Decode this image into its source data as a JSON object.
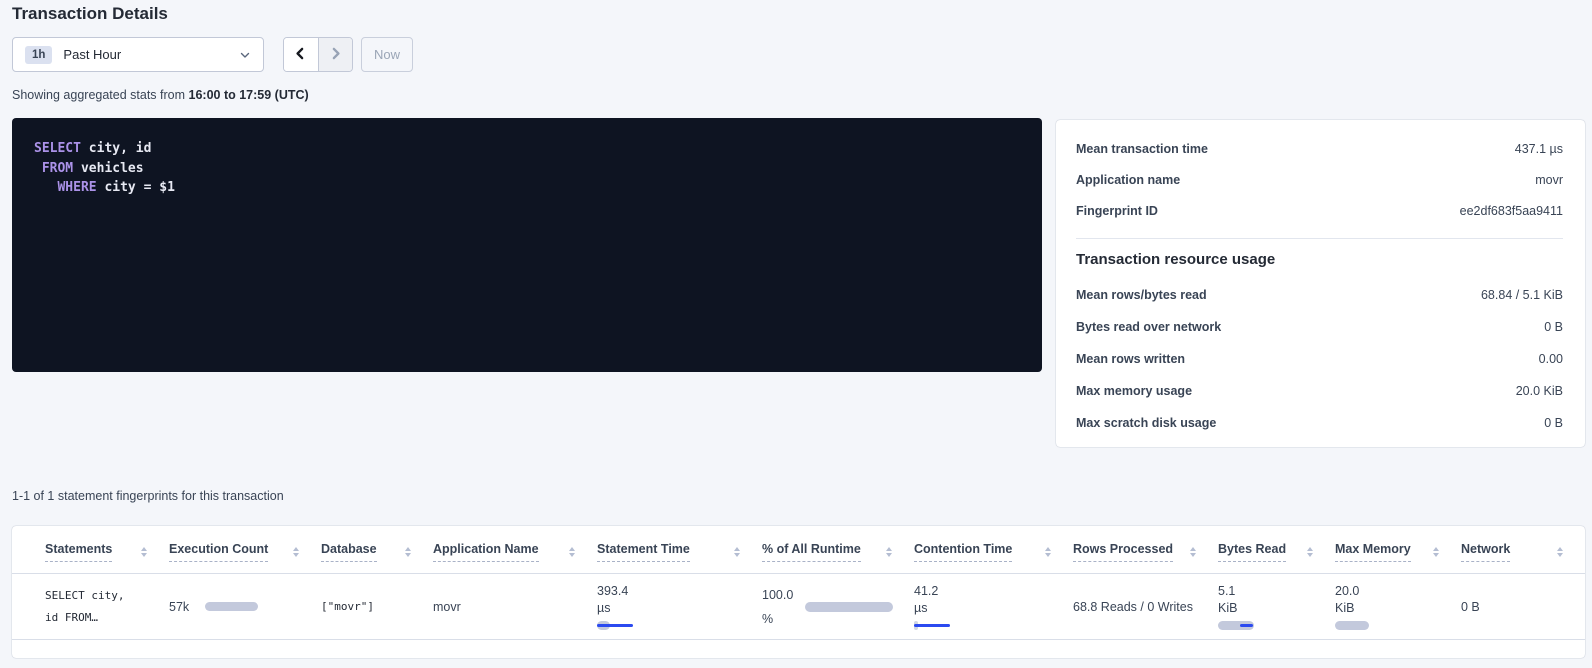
{
  "page": {
    "title": "Transaction Details"
  },
  "time_picker": {
    "range_badge": "1h",
    "range_label": "Past Hour",
    "now_label": "Now"
  },
  "stats_line": {
    "prefix": "Showing aggregated stats from ",
    "range": "16:00 to 17:59 (UTC)"
  },
  "sql": {
    "statement": "SELECT city, id FROM vehicles WHERE city = $1",
    "lines": [
      {
        "tokens": [
          {
            "type": "keyword",
            "text": "SELECT"
          },
          {
            "type": "text",
            "text": " city, id"
          }
        ]
      },
      {
        "tokens": [
          {
            "type": "text",
            "text": " "
          },
          {
            "type": "keyword",
            "text": "FROM"
          },
          {
            "type": "text",
            "text": " vehicles"
          }
        ]
      },
      {
        "tokens": [
          {
            "type": "text",
            "text": "   "
          },
          {
            "type": "keyword",
            "text": "WHERE"
          },
          {
            "type": "text",
            "text": " city = $1"
          }
        ]
      }
    ]
  },
  "summary": {
    "rows": [
      {
        "label": "Mean transaction time",
        "value": "437.1 µs"
      },
      {
        "label": "Application name",
        "value": "movr"
      },
      {
        "label": "Fingerprint ID",
        "value": "ee2df683f5aa9411"
      }
    ]
  },
  "resource": {
    "heading": "Transaction resource usage",
    "rows": [
      {
        "label": "Mean rows/bytes read",
        "value": "68.84 / 5.1 KiB"
      },
      {
        "label": "Bytes read over network",
        "value": "0 B"
      },
      {
        "label": "Mean rows written",
        "value": "0.00"
      },
      {
        "label": "Max memory usage",
        "value": "20.0 KiB"
      },
      {
        "label": "Max scratch disk usage",
        "value": "0 B"
      }
    ]
  },
  "statements_table": {
    "caption": "1-1 of 1 statement fingerprints for this transaction",
    "columns": [
      "Statements",
      "Execution Count",
      "Database",
      "Application Name",
      "Statement Time",
      "% of All Runtime",
      "Contention Time",
      "Rows Processed",
      "Bytes Read",
      "Max Memory",
      "Network"
    ],
    "row": {
      "statement_line1": "SELECT city,",
      "statement_line2": "id FROM…",
      "execution_count": "57k",
      "database": "[\"movr\"]",
      "application_name": "movr",
      "statement_time": {
        "value": "393.4",
        "unit": "µs"
      },
      "percent_of_runtime": {
        "value": "100.0",
        "unit": "%"
      },
      "contention_time": {
        "value": "41.2",
        "unit": "µs"
      },
      "rows_processed": "68.8 Reads / 0 Writes",
      "bytes_read": {
        "value": "5.1",
        "unit": "KiB"
      },
      "max_memory": {
        "value": "20.0",
        "unit": "KiB"
      },
      "network": "0 B"
    }
  },
  "colors": {
    "accent_blue": "#2b4af0",
    "bar_gray": "#c3c9dc",
    "sql_background": "#0e1422",
    "sql_keyword": "#ab92e8",
    "page_background": "#f4f6fa"
  }
}
